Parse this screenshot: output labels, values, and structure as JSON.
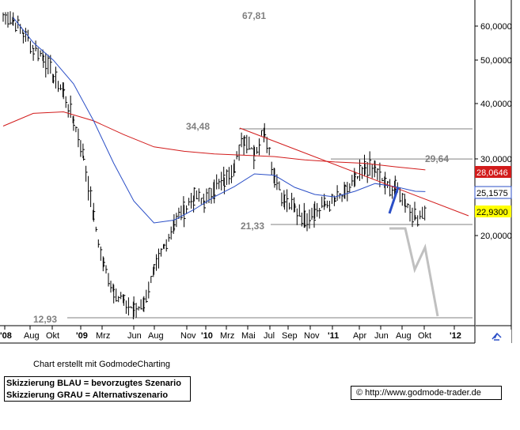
{
  "chart_data": {
    "type": "line",
    "y_scale": "log",
    "ylim": [
      12,
      65
    ],
    "x_tick_labels": [
      "'08",
      "Aug",
      "Okt",
      "'09",
      "Mrz",
      "Jun",
      "Aug",
      "Nov",
      "'10",
      "Mrz",
      "Mai",
      "Jul",
      "Sep",
      "Nov",
      "'11",
      "Apr",
      "Jun",
      "Aug",
      "Okt",
      "'12"
    ],
    "y_tick_labels": [
      "60,0000",
      "50,0000",
      "40,0000",
      "30,0000",
      "20,0000"
    ],
    "price_labels": {
      "red": "28,0646",
      "blue": "25,1575",
      "yellow": "22,9300"
    },
    "annotations": [
      "67,81",
      "34,48",
      "29,64",
      "21,33",
      "12,93"
    ],
    "series": [
      {
        "role": "price",
        "color": "#000000",
        "points": [
          [
            "2008-01",
            64
          ],
          [
            "2008-02",
            62
          ],
          [
            "2008-03",
            58
          ],
          [
            "2008-04",
            53
          ],
          [
            "2008-05",
            51
          ],
          [
            "2008-06",
            46
          ],
          [
            "2008-07",
            42
          ],
          [
            "2008-08",
            36
          ],
          [
            "2008-09",
            30
          ],
          [
            "2008-10",
            22
          ],
          [
            "2008-11",
            17
          ],
          [
            "2008-12",
            15
          ],
          [
            "2009-01",
            14
          ],
          [
            "2009-02",
            13.5
          ],
          [
            "2009-03",
            14
          ],
          [
            "2009-04",
            16.5
          ],
          [
            "2009-05",
            19
          ],
          [
            "2009-06",
            21.5
          ],
          [
            "2009-07",
            23
          ],
          [
            "2009-08",
            24.5
          ],
          [
            "2009-09",
            24
          ],
          [
            "2009-10",
            25.5
          ],
          [
            "2009-11",
            26.5
          ],
          [
            "2009-12",
            29
          ],
          [
            "2010-01",
            33
          ],
          [
            "2010-02",
            30.5
          ],
          [
            "2010-03",
            34.5
          ],
          [
            "2010-04",
            27
          ],
          [
            "2010-05",
            24
          ],
          [
            "2010-06",
            23
          ],
          [
            "2010-07",
            22
          ],
          [
            "2010-08",
            22.8
          ],
          [
            "2010-09",
            23.5
          ],
          [
            "2010-10",
            24
          ],
          [
            "2010-11",
            25
          ],
          [
            "2010-12",
            26.5
          ],
          [
            "2011-01",
            28.5
          ],
          [
            "2011-02",
            28
          ],
          [
            "2011-03",
            26
          ],
          [
            "2011-04",
            25.5
          ],
          [
            "2011-05",
            24
          ],
          [
            "2011-06",
            22
          ],
          [
            "2011-07",
            22.9
          ]
        ]
      },
      {
        "role": "moving-average-blue",
        "color": "#2b4fc7",
        "points": [
          [
            "2008-02",
            63
          ],
          [
            "2008-04",
            55
          ],
          [
            "2008-06",
            50
          ],
          [
            "2008-08",
            44
          ],
          [
            "2008-10",
            36
          ],
          [
            "2008-12",
            29
          ],
          [
            "2009-02",
            24
          ],
          [
            "2009-04",
            21.5
          ],
          [
            "2009-06",
            21.8
          ],
          [
            "2009-08",
            23
          ],
          [
            "2009-10",
            24.5
          ],
          [
            "2009-12",
            25.8
          ],
          [
            "2010-02",
            27.5
          ],
          [
            "2010-04",
            27.3
          ],
          [
            "2010-06",
            25.7
          ],
          [
            "2010-08",
            24.8
          ],
          [
            "2010-10",
            24.5
          ],
          [
            "2010-12",
            25.2
          ],
          [
            "2011-02",
            26.2
          ],
          [
            "2011-04",
            25.8
          ],
          [
            "2011-06",
            25.2
          ],
          [
            "2011-07",
            25.1575
          ]
        ]
      },
      {
        "role": "moving-average-red",
        "color": "#d21b1b",
        "points": [
          [
            "2008-01",
            35
          ],
          [
            "2008-04",
            37.5
          ],
          [
            "2008-07",
            37.8
          ],
          [
            "2008-10",
            36
          ],
          [
            "2009-01",
            33.5
          ],
          [
            "2009-04",
            31.5
          ],
          [
            "2009-07",
            30.8
          ],
          [
            "2009-10",
            30.4
          ],
          [
            "2010-01",
            30.2
          ],
          [
            "2010-04",
            30
          ],
          [
            "2010-07",
            29.5
          ],
          [
            "2010-10",
            29.2
          ],
          [
            "2011-01",
            29
          ],
          [
            "2011-04",
            28.5
          ],
          [
            "2011-07",
            28.0646
          ]
        ]
      }
    ],
    "levels": [
      {
        "color": "#808080",
        "value": 34.48
      },
      {
        "color": "#808080",
        "value": 29.64
      },
      {
        "color": "#808080",
        "value": 21.33
      },
      {
        "color": "#808080",
        "value": 12.93
      }
    ]
  },
  "texts": {
    "credit": "Chart erstellt mit GodmodeCharting",
    "legend_blue": "Skizzierung BLAU = bevorzugtes Szenario",
    "legend_grey": "Skizzierung GRAU = Alternativszenario",
    "url": "http://www.godmode-trader.de",
    "copyright_symbol": "©"
  }
}
